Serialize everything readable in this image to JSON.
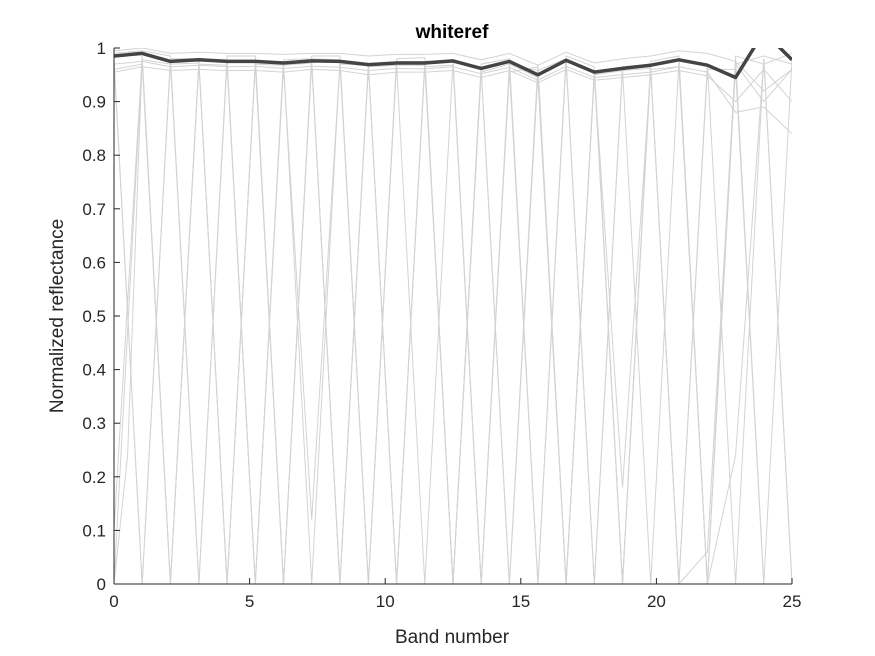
{
  "chart_data": {
    "type": "line",
    "title": "whiteref",
    "xlabel": "Band number",
    "ylabel": "Normalized reflectance",
    "xlim": [
      0,
      25
    ],
    "ylim": [
      0,
      1
    ],
    "xticks": [
      0,
      5,
      10,
      15,
      20,
      25
    ],
    "yticks": [
      0,
      0.1,
      0.2,
      0.3,
      0.4,
      0.5,
      0.6,
      0.7,
      0.8,
      0.9,
      1
    ],
    "ytick_labels": [
      "0",
      "0.1",
      "0.2",
      "0.3",
      "0.4",
      "0.5",
      "0.6",
      "0.7",
      "0.8",
      "0.9",
      "1"
    ],
    "grid": false,
    "colors": {
      "mean_line": "#444444",
      "background_lines": "#d3d3d3",
      "axis": "#262626"
    },
    "series": [
      {
        "x": [
          0,
          1.04,
          2.08,
          3.13,
          4.17,
          5.21,
          6.25,
          7.29,
          8.33,
          9.38,
          10.42,
          11.46,
          12.5,
          13.54,
          14.58,
          15.63,
          16.67,
          17.71,
          18.75,
          19.79,
          20.83,
          21.88,
          22.92,
          23.96,
          25
        ],
        "values": [
          0.985,
          0.99,
          0.975,
          0.978,
          0.975,
          0.975,
          0.972,
          0.976,
          0.975,
          0.969,
          0.972,
          0.972,
          0.976,
          0.962,
          0.975,
          0.95,
          0.977,
          0.955,
          0.962,
          0.968,
          0.978,
          0.968,
          0.945,
          1.03,
          0.978
        ]
      }
    ],
    "background_lines": [
      {
        "x": [
          0,
          1.04,
          2.08,
          3.13,
          4.17,
          5.21,
          6.25,
          7.29,
          8.33,
          9.38,
          10.42,
          11.46,
          12.5,
          13.54,
          14.58,
          15.63,
          16.67,
          17.71,
          18.75,
          19.79,
          20.83,
          21.88,
          22.92,
          23.96,
          25
        ],
        "values": [
          0.97,
          0.975,
          0.965,
          0.968,
          0.965,
          0.966,
          0.962,
          0.966,
          0.964,
          0.958,
          0.962,
          0.961,
          0.965,
          0.952,
          0.964,
          0.94,
          0.966,
          0.945,
          0.95,
          0.955,
          0.965,
          0.955,
          0.88,
          0.89,
          0.84
        ]
      },
      {
        "x": [
          0,
          1.04,
          2.08,
          3.13,
          4.17,
          5.21,
          6.25,
          7.29,
          8.33,
          9.38,
          10.42,
          11.46,
          12.5,
          13.54,
          14.58,
          15.63,
          16.67,
          17.71,
          18.75,
          19.79,
          20.83,
          21.88,
          22.92,
          23.96,
          25
        ],
        "values": [
          0.995,
          1.0,
          0.99,
          0.992,
          0.99,
          0.99,
          0.988,
          0.99,
          0.99,
          0.985,
          0.988,
          0.988,
          0.99,
          0.978,
          0.99,
          0.968,
          0.992,
          0.972,
          0.98,
          0.985,
          0.995,
          0.99,
          0.975,
          0.92,
          0.96
        ]
      },
      {
        "x": [
          0,
          1.04,
          2.08,
          3.13,
          4.17,
          5.21,
          6.25,
          7.29,
          8.33,
          9.38,
          10.42,
          11.46,
          12.5,
          13.54,
          14.58,
          15.63,
          16.67,
          17.71,
          18.75,
          19.79,
          20.83,
          21.88,
          22.92,
          23.96,
          25
        ],
        "values": [
          0.955,
          0.965,
          0.958,
          0.96,
          0.958,
          0.958,
          0.955,
          0.96,
          0.958,
          0.95,
          0.955,
          0.955,
          0.958,
          0.945,
          0.958,
          0.935,
          0.96,
          0.94,
          0.945,
          0.95,
          0.958,
          0.948,
          0.9,
          0.96,
          0.9
        ]
      },
      {
        "x": [
          0,
          0.5,
          1.04,
          2.08,
          3.13,
          4.17,
          5.21,
          6.25,
          7.29,
          8.33,
          9.38,
          10.42,
          11.46,
          12.5,
          13.54,
          14.58,
          15.63,
          16.67,
          17.71,
          18.75,
          19.79,
          20.83,
          21.88,
          22.92,
          23.96,
          25
        ],
        "values": [
          0,
          0.24,
          0.98,
          0,
          0.975,
          0,
          0.97,
          0,
          0.975,
          0,
          0.97,
          0,
          0.972,
          0,
          0.96,
          0,
          0.95,
          0,
          0.955,
          0,
          0.965,
          0,
          0.06,
          0.98,
          0,
          0
        ]
      },
      {
        "x": [
          0,
          1.04,
          2.08,
          3.13,
          4.17,
          5.21,
          6.25,
          7.29,
          8.33,
          9.38,
          10.42,
          11.46,
          12.5,
          13.54,
          14.58,
          15.63,
          16.67,
          17.71,
          18.75,
          19.79,
          20.83,
          21.88,
          22.92,
          23.96,
          25
        ],
        "values": [
          0.98,
          0,
          0.975,
          0,
          0.975,
          0,
          0.972,
          0,
          0.975,
          0,
          0.97,
          0,
          0.975,
          0,
          0.96,
          0,
          0.975,
          0,
          0.96,
          0,
          0.975,
          0,
          0.24,
          0.98,
          0
        ]
      },
      {
        "x": [
          0,
          1.04,
          2.08,
          3.13,
          4.17,
          5.21,
          6.25,
          7.29,
          8.33,
          9.38,
          10.42,
          11.46,
          12.5,
          13.54,
          14.58,
          15.63,
          16.67,
          17.71,
          18.75,
          19.79,
          20.83,
          21.88,
          22.92,
          23.96,
          25
        ],
        "values": [
          0.1,
          0.985,
          0,
          0.975,
          0,
          0.972,
          0,
          0.975,
          0,
          0.97,
          0,
          0.972,
          0,
          0.96,
          0,
          0.97,
          0,
          0.955,
          0,
          0.962,
          0,
          0.97,
          0,
          0.98,
          0
        ]
      },
      {
        "x": [
          0,
          1.04,
          2.08,
          3.13,
          4.17,
          5.21,
          6.25,
          7.29,
          8.33,
          9.38,
          10.42,
          11.46,
          12.5,
          13.54,
          14.58,
          15.63,
          16.67,
          17.71,
          18.75,
          19.79,
          20.83,
          21.88,
          22.92,
          23.96,
          25
        ],
        "values": [
          0.96,
          0.97,
          0,
          0.97,
          0.968,
          0,
          0.965,
          0.12,
          0.97,
          0.968,
          0,
          0.965,
          0.968,
          0,
          0.955,
          0.965,
          0,
          0.95,
          0.18,
          0.96,
          0.965,
          0,
          0.97,
          0.9,
          0.96
        ]
      },
      {
        "x": [
          0,
          1.04,
          2.08,
          3.13,
          4.17,
          5.21,
          6.25,
          7.29,
          8.33,
          9.38,
          10.42,
          11.46,
          12.5,
          13.54,
          14.58,
          15.63,
          16.67,
          17.71,
          18.75,
          19.79,
          20.83,
          21.88,
          22.92,
          23.96,
          25
        ],
        "values": [
          0.99,
          0.995,
          0.985,
          0,
          0.985,
          0.985,
          0,
          0.985,
          0.985,
          0,
          0.98,
          0.982,
          0,
          0.97,
          0.98,
          0,
          0.985,
          0.965,
          0,
          0.975,
          0.985,
          0,
          0.985,
          0.97,
          0.99
        ]
      },
      {
        "x": [
          0,
          1.04,
          2.08,
          3.13,
          4.17,
          5.21,
          6.25,
          7.29,
          8.33,
          9.38,
          10.42,
          11.46,
          12.5,
          13.54,
          14.58,
          15.63,
          16.67,
          17.71,
          18.75,
          19.79,
          20.83,
          21.88,
          22.92,
          23.96,
          25
        ],
        "values": [
          0,
          0.978,
          0.97,
          0.972,
          0,
          0.97,
          0.968,
          0.972,
          0,
          0.965,
          0.968,
          0.968,
          0,
          0.955,
          0.97,
          0.945,
          0,
          0.95,
          0.958,
          0.962,
          0,
          0.96,
          0.96,
          0,
          0.98
        ]
      },
      {
        "x": [
          0,
          1.04,
          2.08,
          3.13,
          4.17,
          5.21,
          6.25,
          7.29,
          8.33,
          9.38,
          10.42,
          11.46,
          12.5,
          13.54,
          14.58,
          15.63,
          16.67,
          17.71,
          18.75,
          19.79,
          20.83,
          21.88,
          22.92,
          23.96,
          25
        ],
        "values": [
          0.975,
          0,
          0.98,
          0.98,
          0.978,
          0,
          0.978,
          0.98,
          0.978,
          0,
          0.975,
          0.975,
          0.978,
          0,
          0.97,
          0.958,
          0.98,
          0,
          0.965,
          0.97,
          0.98,
          0,
          0.97,
          0.985,
          0.97
        ]
      }
    ]
  }
}
